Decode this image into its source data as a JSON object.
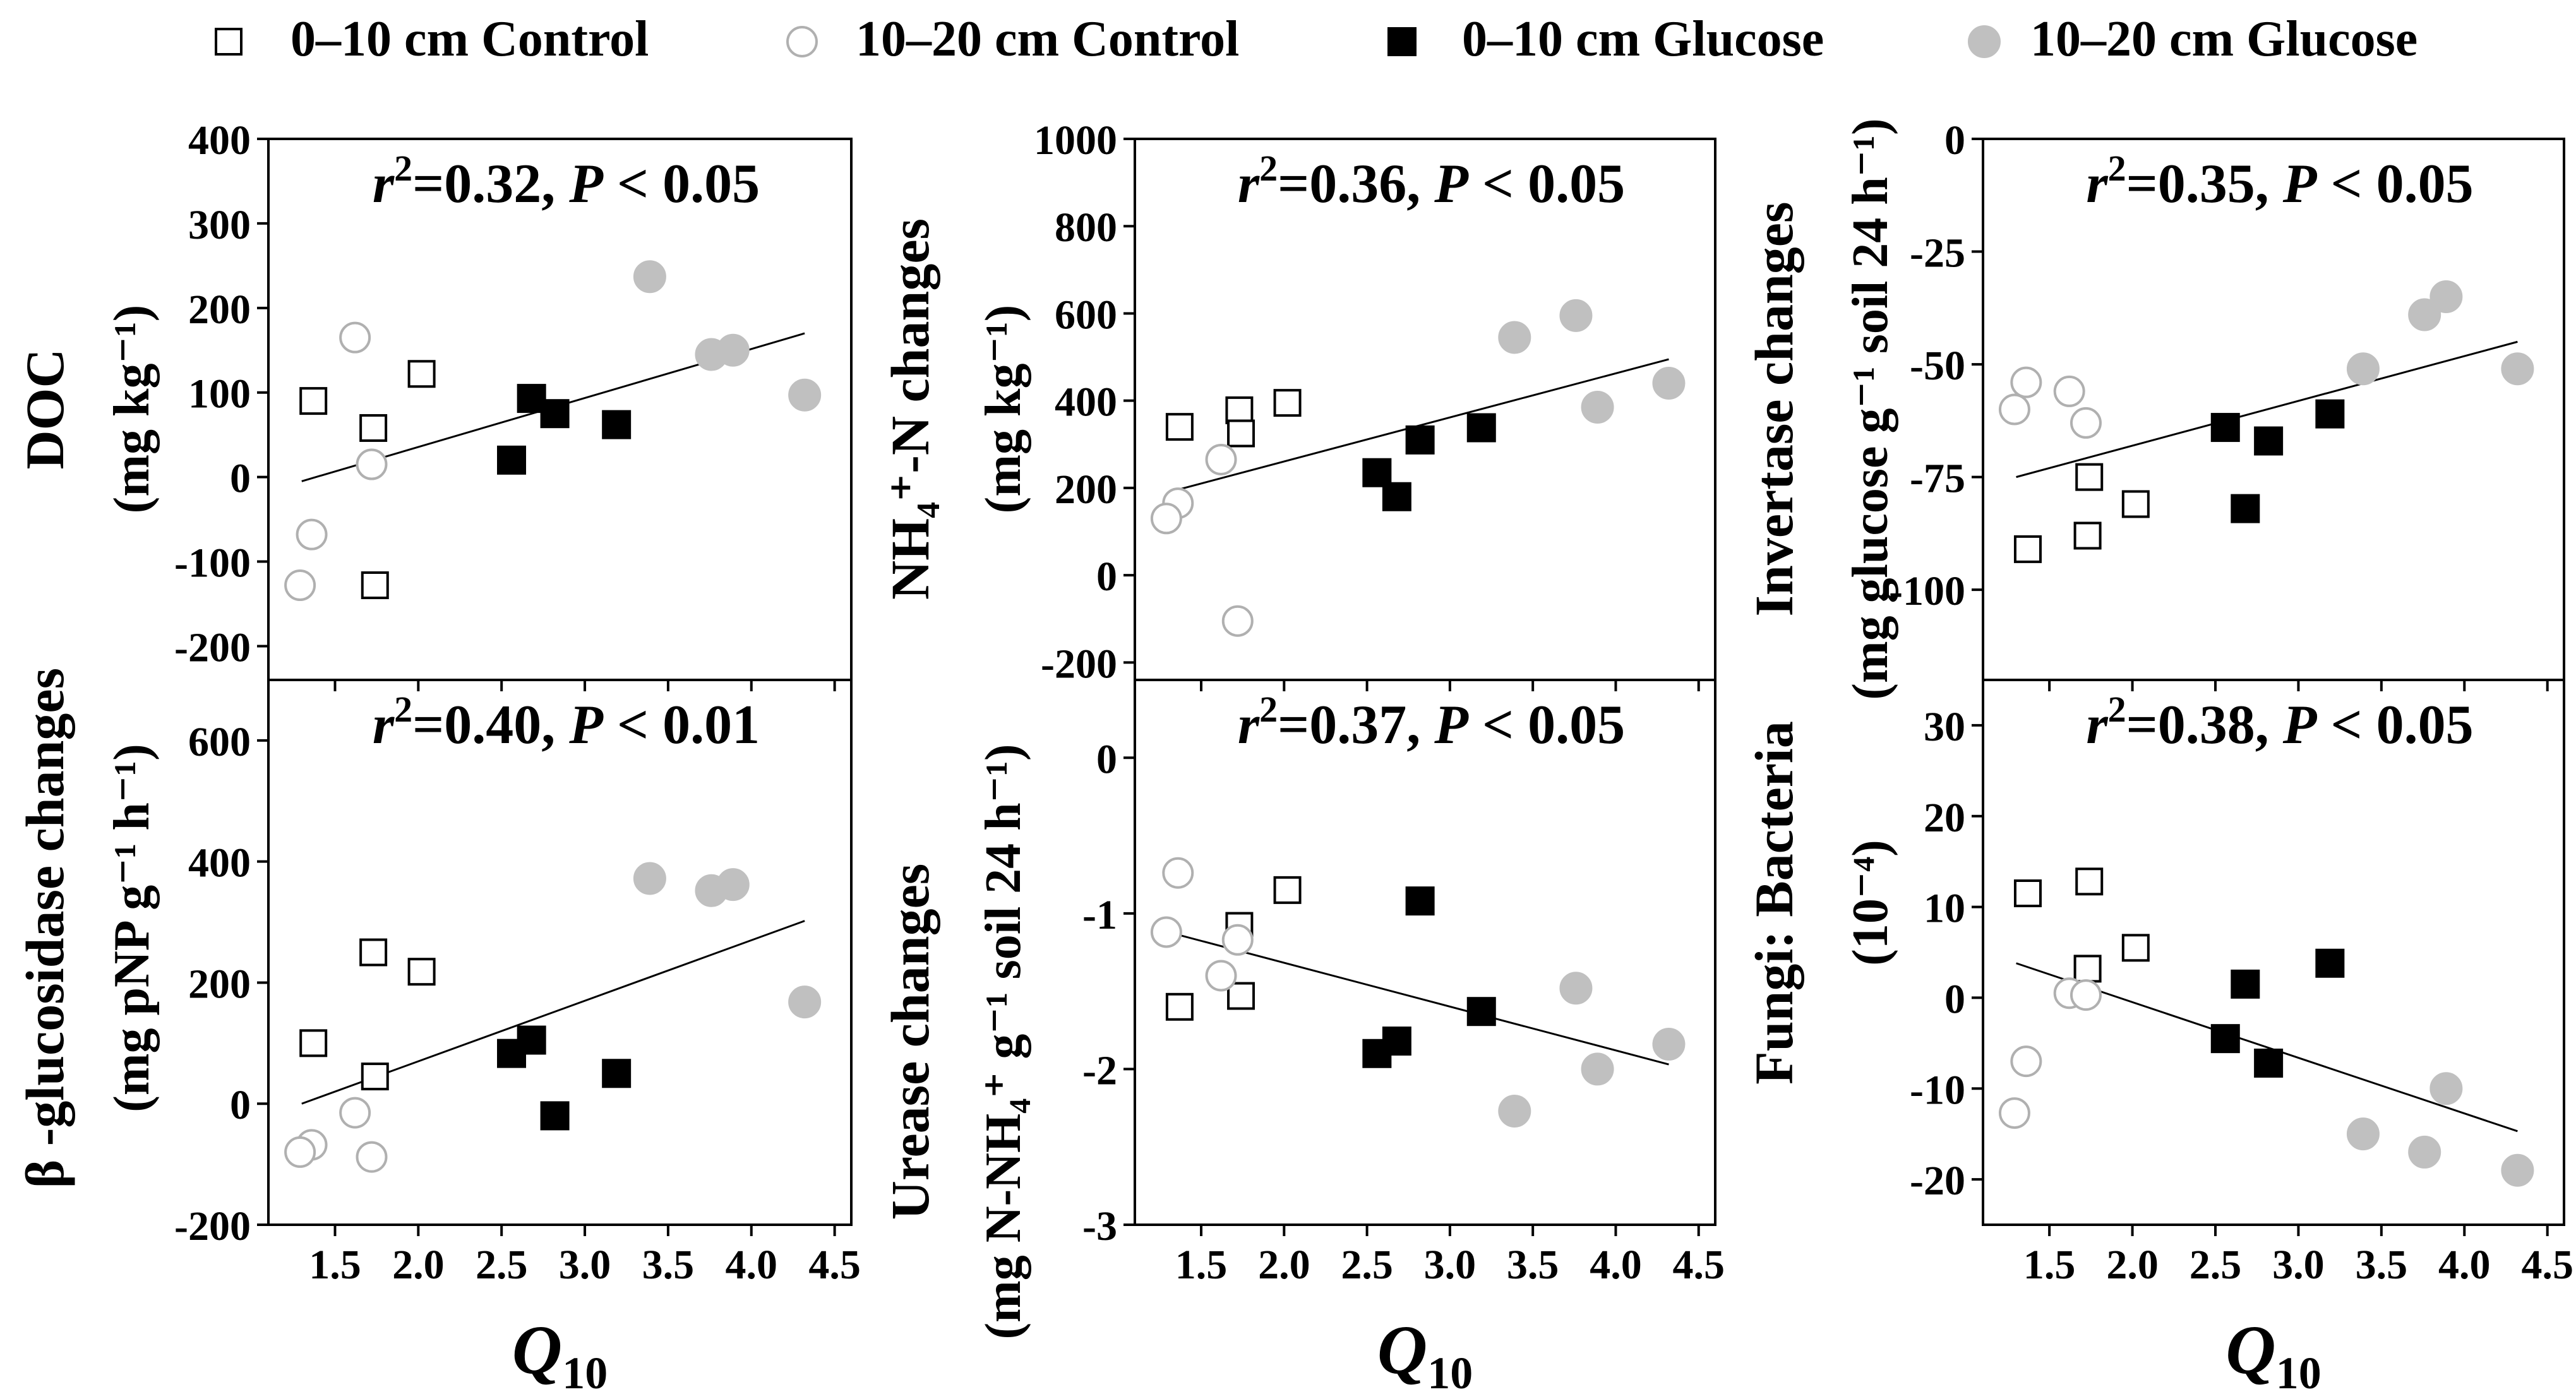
{
  "legend": [
    {
      "label": "0–10 cm Control",
      "marker": "open-square"
    },
    {
      "label": "10–20 cm Control",
      "marker": "open-circle"
    },
    {
      "label": "0–10 cm Glucose",
      "marker": "filled-square"
    },
    {
      "label": "10–20 cm Glucose",
      "marker": "filled-circle"
    }
  ],
  "colors": {
    "square": "#000000",
    "circle_open": "#b0b0b0",
    "circle_filled": "#c0c0c0",
    "line": "#000000"
  },
  "x_axis": {
    "label": "Q",
    "label_sub": "10",
    "ticks": [
      "1.5",
      "2.0",
      "2.5",
      "3.0",
      "3.5",
      "4.0",
      "4.5"
    ]
  },
  "chart_data": [
    {
      "type": "scatter",
      "name": "doc",
      "ylabel": [
        "DOC",
        "(mg kg⁻¹)"
      ],
      "annotation": {
        "r2": "0.32",
        "p": "0.05",
        "p_op": "<"
      },
      "xlim": [
        1.1,
        4.6
      ],
      "ylim": [
        -240,
        400
      ],
      "yticks": [
        -200,
        -100,
        0,
        100,
        200,
        300,
        400
      ],
      "fit": {
        "x": [
          1.3,
          4.32
        ],
        "y": [
          -5,
          170
        ]
      },
      "series": [
        {
          "name": "0–10 cm Control",
          "x": [
            1.37,
            1.73,
            2.02,
            1.74
          ],
          "y": [
            90,
            58,
            122,
            -128
          ]
        },
        {
          "name": "10–20 cm Control",
          "x": [
            1.62,
            1.72,
            1.36,
            1.29
          ],
          "y": [
            165,
            15,
            -68,
            -128
          ]
        },
        {
          "name": "0–10 cm Glucose",
          "x": [
            2.68,
            2.82,
            2.56,
            3.19
          ],
          "y": [
            93,
            75,
            20,
            62
          ]
        },
        {
          "name": "10–20 cm Glucose",
          "x": [
            3.39,
            3.76,
            3.89,
            4.32
          ],
          "y": [
            237,
            145,
            150,
            97
          ]
        }
      ]
    },
    {
      "type": "scatter",
      "name": "nh4",
      "ylabel": [
        "NH₄⁺-N  changes",
        "(mg kg⁻¹)"
      ],
      "annotation": {
        "r2": "0.36",
        "p": "0.05",
        "p_op": "<"
      },
      "xlim": [
        1.1,
        4.6
      ],
      "ylim": [
        -240,
        1000
      ],
      "yticks": [
        -200,
        0,
        200,
        400,
        600,
        800,
        1000
      ],
      "fit": {
        "x": [
          1.3,
          4.32
        ],
        "y": [
          190,
          495
        ]
      },
      "series": [
        {
          "name": "0–10 cm Control",
          "x": [
            1.37,
            1.73,
            2.02,
            1.74
          ],
          "y": [
            340,
            378,
            395,
            325
          ]
        },
        {
          "name": "10–20 cm Control",
          "x": [
            1.62,
            1.36,
            1.29,
            1.72
          ],
          "y": [
            265,
            165,
            130,
            -105
          ]
        },
        {
          "name": "0–10 cm Glucose",
          "x": [
            2.56,
            2.68,
            2.82,
            3.19
          ],
          "y": [
            235,
            180,
            310,
            338
          ]
        },
        {
          "name": "10–20 cm Glucose",
          "x": [
            3.39,
            3.76,
            3.89,
            4.32
          ],
          "y": [
            545,
            595,
            385,
            440
          ]
        }
      ]
    },
    {
      "type": "scatter",
      "name": "invertase",
      "ylabel": [
        "Invertase changes",
        "(mg glucose g⁻¹ soil 24 h⁻¹)"
      ],
      "annotation": {
        "r2": "0.35",
        "p": "0.05",
        "p_op": "<"
      },
      "xlim": [
        1.1,
        4.6
      ],
      "ylim": [
        -120,
        0
      ],
      "yticks": [
        -100,
        -75,
        -50,
        -25,
        0
      ],
      "fit": {
        "x": [
          1.3,
          4.32
        ],
        "y": [
          -75,
          -45
        ]
      },
      "series": [
        {
          "name": "0–10 cm Control",
          "x": [
            1.74,
            1.73,
            2.02,
            1.37
          ],
          "y": [
            -75,
            -88,
            -81,
            -91
          ]
        },
        {
          "name": "10–20 cm Control",
          "x": [
            1.29,
            1.36,
            1.62,
            1.72
          ],
          "y": [
            -60,
            -54,
            -56,
            -63
          ]
        },
        {
          "name": "0–10 cm Glucose",
          "x": [
            2.56,
            2.82,
            2.68,
            3.19
          ],
          "y": [
            -64,
            -67,
            -82,
            -61
          ]
        },
        {
          "name": "10–20 cm Glucose",
          "x": [
            3.39,
            3.76,
            3.89,
            4.32
          ],
          "y": [
            -51,
            -39,
            -35,
            -51
          ]
        }
      ]
    },
    {
      "type": "scatter",
      "name": "glucosidase",
      "ylabel": [
        "β -glucosidase changes",
        "(mg pNP g⁻¹ h⁻¹)"
      ],
      "annotation": {
        "r2": "0.40",
        "p": "0.01",
        "p_op": "<"
      },
      "xlim": [
        1.1,
        4.6
      ],
      "ylim": [
        -200,
        700
      ],
      "yticks": [
        -200,
        0,
        200,
        400,
        600
      ],
      "fit": {
        "x": [
          1.3,
          4.32
        ],
        "y": [
          0,
          302
        ]
      },
      "series": [
        {
          "name": "0–10 cm Control",
          "x": [
            1.37,
            1.73,
            2.02,
            1.74
          ],
          "y": [
            100,
            250,
            218,
            45
          ]
        },
        {
          "name": "10–20 cm Control",
          "x": [
            1.36,
            1.29,
            1.62,
            1.72
          ],
          "y": [
            -68,
            -80,
            -15,
            -88
          ]
        },
        {
          "name": "0–10 cm Glucose",
          "x": [
            2.56,
            2.68,
            2.82,
            3.19
          ],
          "y": [
            83,
            105,
            -20,
            50
          ]
        },
        {
          "name": "10–20 cm Glucose",
          "x": [
            3.39,
            3.76,
            3.89,
            4.32
          ],
          "y": [
            372,
            352,
            362,
            168
          ]
        }
      ]
    },
    {
      "type": "scatter",
      "name": "urease",
      "ylabel": [
        "Urease changes",
        "(mg N-NH₄⁺ g⁻¹ soil 24 h⁻¹)"
      ],
      "annotation": {
        "r2": "0.37",
        "p": "0.05",
        "p_op": "<"
      },
      "xlim": [
        1.1,
        4.6
      ],
      "ylim": [
        -3,
        0.5
      ],
      "yticks": [
        -3,
        -2,
        -1,
        0
      ],
      "fit": {
        "x": [
          1.3,
          4.32
        ],
        "y": [
          -1.12,
          -1.97
        ]
      },
      "series": [
        {
          "name": "0–10 cm Control",
          "x": [
            1.37,
            1.73,
            2.02,
            1.74
          ],
          "y": [
            -1.6,
            -1.08,
            -0.85,
            -1.53
          ]
        },
        {
          "name": "10–20 cm Control",
          "x": [
            1.36,
            1.29,
            1.62,
            1.72
          ],
          "y": [
            -0.74,
            -1.12,
            -1.4,
            -1.17
          ]
        },
        {
          "name": "0–10 cm Glucose",
          "x": [
            2.56,
            2.68,
            2.82,
            3.19
          ],
          "y": [
            -1.9,
            -1.82,
            -0.92,
            -1.63
          ]
        },
        {
          "name": "10–20 cm Glucose",
          "x": [
            3.39,
            3.76,
            3.89,
            4.32
          ],
          "y": [
            -2.27,
            -1.48,
            -2.0,
            -1.84
          ]
        }
      ]
    },
    {
      "type": "scatter",
      "name": "fungi_bacteria",
      "ylabel": [
        "Fungi: Bacteria",
        "(10⁻⁴)"
      ],
      "annotation": {
        "r2": "0.38",
        "p": "0.05",
        "p_op": "<"
      },
      "xlim": [
        1.1,
        4.6
      ],
      "ylim": [
        -25,
        35
      ],
      "yticks": [
        -20,
        -10,
        0,
        10,
        20,
        30
      ],
      "fit": {
        "x": [
          1.3,
          4.32
        ],
        "y": [
          3.8,
          -14.7
        ]
      },
      "series": [
        {
          "name": "0–10 cm Control",
          "x": [
            1.37,
            1.74,
            1.73,
            2.02
          ],
          "y": [
            11.5,
            12.8,
            3.2,
            5.5
          ]
        },
        {
          "name": "10–20 cm Control",
          "x": [
            1.62,
            1.72,
            1.36,
            1.29
          ],
          "y": [
            0.5,
            0.3,
            -7,
            -12.7
          ]
        },
        {
          "name": "0–10 cm Glucose",
          "x": [
            2.68,
            2.56,
            2.82,
            3.19
          ],
          "y": [
            1.5,
            -4.5,
            -7.2,
            3.8
          ]
        },
        {
          "name": "10–20 cm Glucose",
          "x": [
            3.39,
            3.76,
            3.89,
            4.32
          ],
          "y": [
            -15,
            -17,
            -10,
            -19
          ]
        }
      ]
    }
  ]
}
